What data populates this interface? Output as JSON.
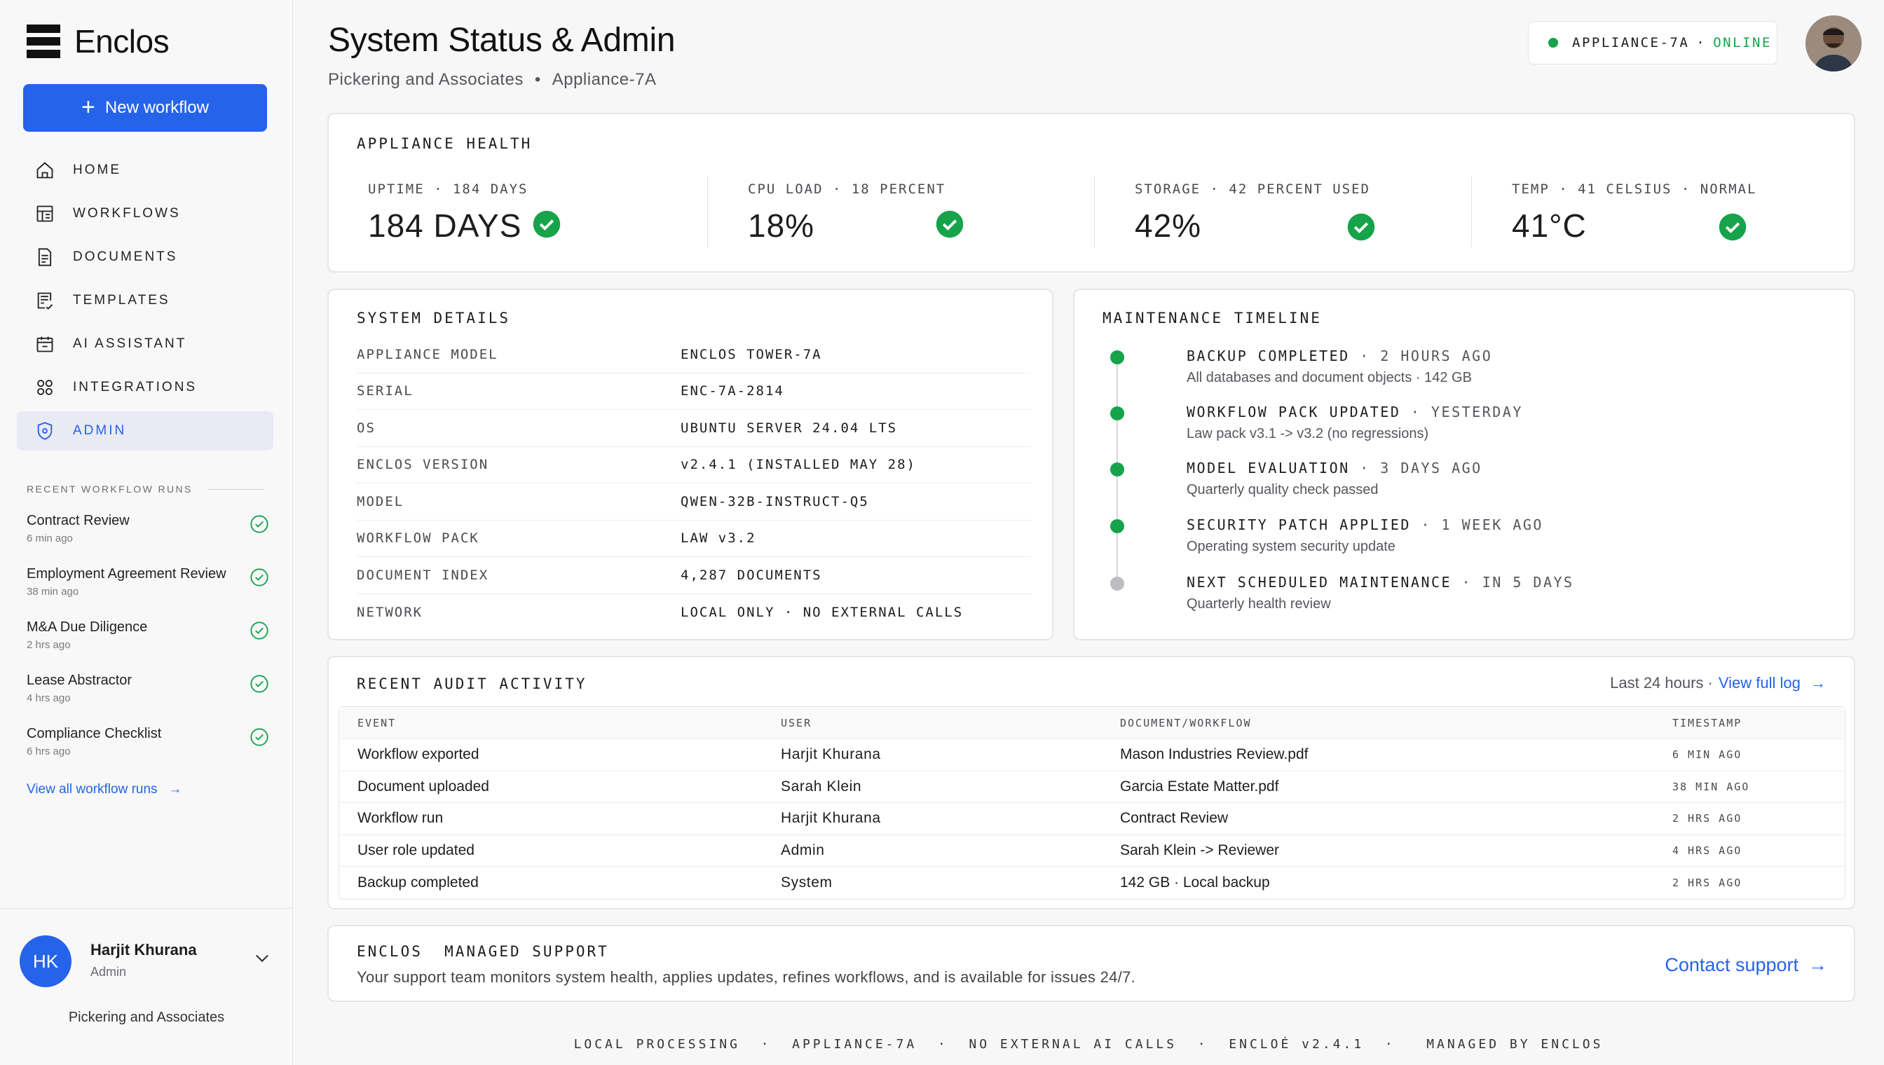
{
  "app": {
    "name": "Enclos"
  },
  "sidebar": {
    "new_workflow_label": "New workflow",
    "nav": [
      {
        "label": "HOME",
        "icon": "home-icon"
      },
      {
        "label": "WORKFLOWS",
        "icon": "workflows-icon"
      },
      {
        "label": "DOCUMENTS",
        "icon": "documents-icon"
      },
      {
        "label": "TEMPLATES",
        "icon": "templates-icon"
      },
      {
        "label": "AI ASSISTANT",
        "icon": "ai-assistant-icon"
      },
      {
        "label": "INTEGRATIONS",
        "icon": "integrations-icon"
      },
      {
        "label": "ADMIN",
        "icon": "shield-icon",
        "active": true
      }
    ],
    "recent_runs_title": "RECENT WORKFLOW RUNS",
    "recent_runs": [
      {
        "name": "Contract Review",
        "time": "6 min ago"
      },
      {
        "name": "Employment Agreement Review",
        "time": "38 min ago"
      },
      {
        "name": "M&A Due Diligence",
        "time": "2 hrs ago"
      },
      {
        "name": "Lease Abstractor",
        "time": "4 hrs ago"
      },
      {
        "name": "Compliance Checklist",
        "time": "6 hrs ago"
      }
    ],
    "view_all_runs": "View all workflow runs",
    "user": {
      "initials": "HK",
      "name": "Harjit Khurana",
      "role": "Admin",
      "org": "Pickering and Associates"
    }
  },
  "header": {
    "title": "System Status & Admin",
    "breadcrumb": [
      "Pickering and Associates",
      "•",
      "Appliance-7A"
    ],
    "status": {
      "appliance": "APPLIANCE-7A",
      "separator": "·",
      "state": "ONLINE"
    }
  },
  "health": {
    "title": "APPLIANCE HEALTH",
    "metrics": [
      {
        "label": "UPTIME · 184 DAYS",
        "value": "184 DAYS"
      },
      {
        "label": "CPU LOAD · 18 PERCENT",
        "value": "18%"
      },
      {
        "label": "STORAGE · 42 PERCENT USED",
        "value": "42%"
      },
      {
        "label": "TEMP · 41 CELSIUS · NORMAL",
        "value": "41°C"
      }
    ]
  },
  "system_details": {
    "title": "SYSTEM DETAILS",
    "rows": [
      {
        "key": "APPLIANCE MODEL",
        "value": "ENCLOS TOWER-7A"
      },
      {
        "key": "SERIAL",
        "value": "ENC-7A-2814"
      },
      {
        "key": "OS",
        "value": "UBUNTU SERVER 24.04 LTS"
      },
      {
        "key": "ENCLOS VERSION",
        "value": "v2.4.1 (INSTALLED MAY 28)"
      },
      {
        "key": "MODEL",
        "value": "QWEN-32B-INSTRUCT-Q5"
      },
      {
        "key": "WORKFLOW PACK",
        "value": "LAW v3.2"
      },
      {
        "key": "DOCUMENT INDEX",
        "value": "4,287 DOCUMENTS"
      },
      {
        "key": "NETWORK",
        "value": "LOCAL ONLY · NO EXTERNAL CALLS"
      }
    ]
  },
  "maintenance": {
    "title": "MAINTENANCE TIMELINE",
    "items": [
      {
        "event": "BACKUP COMPLETED",
        "when": " · 2 HOURS AGO",
        "detail": "All databases and document objects · 142 GB",
        "status": "done"
      },
      {
        "event": "WORKFLOW PACK UPDATED",
        "when": " · YESTERDAY",
        "detail": "Law pack v3.1 -> v3.2 (no regressions)",
        "status": "done"
      },
      {
        "event": "MODEL EVALUATION",
        "when": " · 3 DAYS AGO",
        "detail": "Quarterly quality check passed",
        "status": "done"
      },
      {
        "event": "SECURITY PATCH APPLIED",
        "when": " · 1 WEEK AGO",
        "detail": "Operating system security update",
        "status": "done"
      },
      {
        "event": "NEXT SCHEDULED MAINTENANCE",
        "when": " · IN 5 DAYS",
        "detail": "Quarterly health review",
        "status": "pending"
      }
    ]
  },
  "audit": {
    "title": "RECENT AUDIT ACTIVITY",
    "range": "Last 24 hours ·",
    "view_full_log": "View full log",
    "columns": [
      "EVENT",
      "USER",
      "DOCUMENT/WORKFLOW",
      "TIMESTAMP"
    ],
    "rows": [
      [
        "Workflow exported",
        "Harjit Khurana",
        "Mason Industries Review.pdf",
        "6 MIN AGO"
      ],
      [
        "Document uploaded",
        "Sarah Klein",
        "Garcia Estate Matter.pdf",
        "38 MIN AGO"
      ],
      [
        "Workflow run",
        "Harjit Khurana",
        "Contract Review",
        "2 HRS AGO"
      ],
      [
        "User role updated",
        "Admin",
        "Sarah Klein -> Reviewer",
        "4 HRS AGO"
      ],
      [
        "Backup completed",
        "System",
        "142 GB · Local backup",
        "2 HRS AGO"
      ]
    ]
  },
  "support": {
    "title": "ENCLOS  MANAGED SUPPORT",
    "description": "Your support team monitors system health, applies updates, refines workflows, and is available for issues 24/7.",
    "link": "Contact support"
  },
  "footer": "LOCAL PROCESSING  ·  APPLIANCE-7A  ·  NO EXTERNAL AI CALLS  ·  ENCLOÉ v2.4.1  ·   MANAGED BY ENCLOS",
  "colors": {
    "accent": "#2563eb",
    "success": "#16a34a",
    "pending": "#bdbdc2"
  }
}
